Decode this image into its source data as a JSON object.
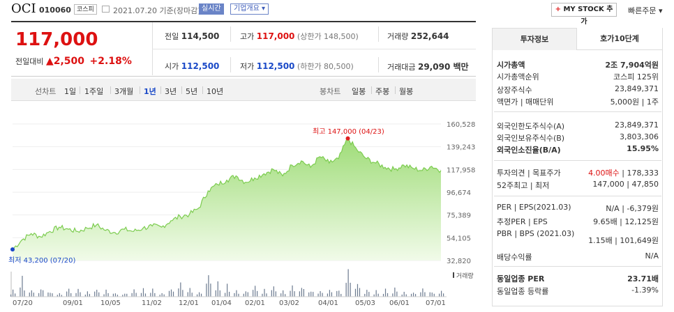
{
  "header": {
    "stock_name": "OCI",
    "stock_code": "010060",
    "market_tag": "코스피",
    "date_text": "2021.07.20 기준(장마감)",
    "realtime_label": "실시간",
    "company_info_label": "기업개요",
    "mystock_label": "MY STOCK 추가",
    "quick_order_label": "빠른주문"
  },
  "price": {
    "current": "117,000",
    "diff_label": "전일대비",
    "diff_value": "▲2,500",
    "diff_rate": "+2.18%",
    "prev_label": "전일",
    "prev_value": "114,500",
    "high_label": "고가",
    "high_value": "117,000",
    "high_limit": "(상한가 148,500)",
    "volume_label": "거래량",
    "volume_value": "252,644",
    "open_label": "시가",
    "open_value": "112,500",
    "low_label": "저가",
    "low_value": "112,500",
    "low_limit": "(하한가 80,500)",
    "amount_label": "거래대금",
    "amount_value": "29,090 백만"
  },
  "period_bar": {
    "line_chart_label": "선차트",
    "periods": [
      "1일",
      "1주일",
      "3개월",
      "1년",
      "3년",
      "5년",
      "10년"
    ],
    "selected": "1년",
    "candle_chart_label": "봉차트",
    "candle_periods": [
      "일봉",
      "주봉",
      "월봉"
    ]
  },
  "chart_data": {
    "type": "area",
    "y_ticks": [
      "160,528",
      "139,243",
      "117,958",
      "96,674",
      "75,389",
      "54,105",
      "32,820"
    ],
    "ylim": [
      32820,
      160528
    ],
    "x_ticks": [
      "07/20",
      "09/01",
      "10/05",
      "11/02",
      "12/01",
      "01/04",
      "02/01",
      "03/02",
      "04/01",
      "05/03",
      "06/01",
      "07/01"
    ],
    "max_annotation": "최고 147,000 (04/23)",
    "min_annotation": "최저 43,200 (07/20)",
    "volume_label": "거래량",
    "values": [
      43200,
      52000,
      58000,
      55000,
      60000,
      64000,
      62000,
      60000,
      63000,
      66000,
      61000,
      59000,
      62000,
      60000,
      63000,
      65000,
      64000,
      70000,
      74000,
      76000,
      82000,
      98000,
      104000,
      108000,
      112000,
      106000,
      110000,
      114000,
      118000,
      112000,
      122000,
      126000,
      120000,
      130000,
      124000,
      128000,
      147000,
      136000,
      128000,
      124000,
      120000,
      118000,
      122000,
      119000,
      117000,
      121000,
      117000
    ],
    "volumes": [
      3,
      8,
      4,
      5,
      3,
      2,
      4,
      3,
      2,
      5,
      3,
      2,
      2,
      3,
      4,
      3,
      2,
      5,
      6,
      4,
      3,
      9,
      6,
      5,
      4,
      3,
      5,
      4,
      6,
      3,
      5,
      7,
      4,
      4,
      3,
      4,
      10,
      6,
      4,
      3,
      3,
      4,
      3,
      3,
      4,
      3,
      4
    ]
  },
  "info_panel": {
    "tabs": [
      "투자정보",
      "호가10단계"
    ],
    "rows": [
      {
        "label": "시가총액",
        "value": "2조 7,904억원"
      },
      {
        "label": "시가총액순위",
        "value": "코스피 125위"
      },
      {
        "label": "상장주식수",
        "value": "23,849,371"
      },
      {
        "label": "액면가 | 매매단위",
        "value": "5,000원 | 1주"
      },
      {
        "label": "외국인한도주식수(A)",
        "value": "23,849,371"
      },
      {
        "label": "외국인보유주식수(B)",
        "value": "3,803,306"
      },
      {
        "label": "외국인소진율(B/A)",
        "value": "15.95%"
      },
      {
        "label": "투자의견 | 목표주가",
        "value_a": "4.00매수",
        "value_b": "| 178,333"
      },
      {
        "label": "52주최고 | 최저",
        "value": "147,000 | 47,850"
      },
      {
        "label": "PER | EPS(2021.03)",
        "value": "N/A | -6,379원"
      },
      {
        "label": "추정PER | EPS",
        "value": "9.65배 | 12,125원"
      },
      {
        "label": "PBR | BPS (2021.03)",
        "value": "1.15배 | 101,649원"
      },
      {
        "label": "배당수익률",
        "value": "N/A"
      },
      {
        "label": "동일업종 PER",
        "value": "23.71배"
      },
      {
        "label": "동일업종 등락률",
        "value": "-1.39%"
      }
    ]
  },
  "colors": {
    "up": "#d11111",
    "down": "#1a49c7",
    "area": "#8fd66a"
  }
}
